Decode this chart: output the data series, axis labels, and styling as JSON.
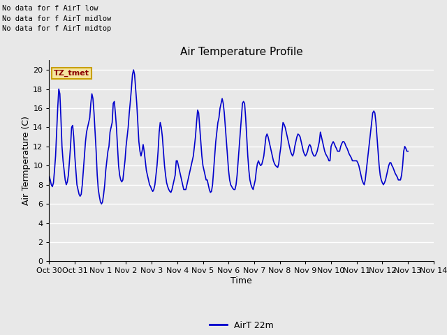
{
  "title": "Air Temperature Profile",
  "xlabel": "Time",
  "ylabel": "Air Termperature (C)",
  "ylim": [
    0,
    21
  ],
  "yticks": [
    0,
    2,
    4,
    6,
    8,
    10,
    12,
    14,
    16,
    18,
    20
  ],
  "xtick_labels": [
    "Oct 30",
    "Oct 31",
    "Nov 1",
    "Nov 2",
    "Nov 3",
    "Nov 4",
    "Nov 5",
    "Nov 6",
    "Nov 7",
    "Nov 8",
    "Nov 9",
    "Nov 10",
    "Nov 11",
    "Nov 12",
    "Nov 13",
    "Nov 14"
  ],
  "line_color": "#0000cc",
  "line_width": 1.2,
  "bg_color": "#e8e8e8",
  "plot_bg_color": "#e8e8e8",
  "grid_color": "#ffffff",
  "legend_label": "AirT 22m",
  "no_data_texts": [
    "No data for f AirT low",
    "No data for f AirT midlow",
    "No data for f AirT midtop"
  ],
  "tz_label": "TZ_tmet",
  "time_days": [
    0.0,
    0.042,
    0.083,
    0.125,
    0.167,
    0.208,
    0.25,
    0.292,
    0.333,
    0.375,
    0.417,
    0.458,
    0.5,
    0.542,
    0.583,
    0.625,
    0.667,
    0.708,
    0.75,
    0.792,
    0.833,
    0.875,
    0.917,
    0.958,
    1.0,
    1.042,
    1.083,
    1.125,
    1.167,
    1.208,
    1.25,
    1.292,
    1.333,
    1.375,
    1.417,
    1.458,
    1.5,
    1.542,
    1.583,
    1.625,
    1.667,
    1.708,
    1.75,
    1.792,
    1.833,
    1.875,
    1.917,
    1.958,
    2.0,
    2.042,
    2.083,
    2.125,
    2.167,
    2.208,
    2.25,
    2.292,
    2.333,
    2.375,
    2.417,
    2.458,
    2.5,
    2.542,
    2.583,
    2.625,
    2.667,
    2.708,
    2.75,
    2.792,
    2.833,
    2.875,
    2.917,
    2.958,
    3.0,
    3.042,
    3.083,
    3.125,
    3.167,
    3.208,
    3.25,
    3.292,
    3.333,
    3.375,
    3.417,
    3.458,
    3.5,
    3.542,
    3.583,
    3.625,
    3.667,
    3.708,
    3.75,
    3.792,
    3.833,
    3.875,
    3.917,
    3.958,
    4.0,
    4.042,
    4.083,
    4.125,
    4.167,
    4.208,
    4.25,
    4.292,
    4.333,
    4.375,
    4.417,
    4.458,
    4.5,
    4.542,
    4.583,
    4.625,
    4.667,
    4.708,
    4.75,
    4.792,
    4.833,
    4.875,
    4.917,
    4.958,
    5.0,
    5.042,
    5.083,
    5.125,
    5.167,
    5.208,
    5.25,
    5.292,
    5.333,
    5.375,
    5.417,
    5.458,
    5.5,
    5.542,
    5.583,
    5.625,
    5.667,
    5.708,
    5.75,
    5.792,
    5.833,
    5.875,
    5.917,
    5.958,
    6.0,
    6.042,
    6.083,
    6.125,
    6.167,
    6.208,
    6.25,
    6.292,
    6.333,
    6.375,
    6.417,
    6.458,
    6.5,
    6.542,
    6.583,
    6.625,
    6.667,
    6.708,
    6.75,
    6.792,
    6.833,
    6.875,
    6.917,
    6.958,
    7.0,
    7.042,
    7.083,
    7.125,
    7.167,
    7.208,
    7.25,
    7.292,
    7.333,
    7.375,
    7.417,
    7.458,
    7.5,
    7.542,
    7.583,
    7.625,
    7.667,
    7.708,
    7.75,
    7.792,
    7.833,
    7.875,
    7.917,
    7.958,
    8.0,
    8.042,
    8.083,
    8.125,
    8.167,
    8.208,
    8.25,
    8.292,
    8.333,
    8.375,
    8.417,
    8.458,
    8.5,
    8.542,
    8.583,
    8.625,
    8.667,
    8.708,
    8.75,
    8.792,
    8.833,
    8.875,
    8.917,
    8.958,
    9.0,
    9.042,
    9.083,
    9.125,
    9.167,
    9.208,
    9.25,
    9.292,
    9.333,
    9.375,
    9.417,
    9.458,
    9.5,
    9.542,
    9.583,
    9.625,
    9.667,
    9.708,
    9.75,
    9.792,
    9.833,
    9.875,
    9.917,
    9.958,
    10.0,
    10.042,
    10.083,
    10.125,
    10.167,
    10.208,
    10.25,
    10.292,
    10.333,
    10.375,
    10.417,
    10.458,
    10.5,
    10.542,
    10.583,
    10.625,
    10.667,
    10.708,
    10.75,
    10.792,
    10.833,
    10.875,
    10.917,
    10.958,
    11.0,
    11.042,
    11.083,
    11.125,
    11.167,
    11.208,
    11.25,
    11.292,
    11.333,
    11.375,
    11.417,
    11.458,
    11.5,
    11.542,
    11.583,
    11.625,
    11.667,
    11.708,
    11.75,
    11.792,
    11.833,
    11.875,
    11.917,
    11.958,
    12.0,
    12.042,
    12.083,
    12.125,
    12.167,
    12.208,
    12.25,
    12.292,
    12.333,
    12.375,
    12.417,
    12.458,
    12.5,
    12.542,
    12.583,
    12.625,
    12.667,
    12.708,
    12.75,
    12.792,
    12.833,
    12.875,
    12.917,
    12.958,
    13.0,
    13.042,
    13.083,
    13.125,
    13.167,
    13.208,
    13.25,
    13.292,
    13.333,
    13.375,
    13.417,
    13.458,
    13.5,
    13.542,
    13.583,
    13.625,
    13.667,
    13.708,
    13.75,
    13.792,
    13.833,
    13.875,
    13.917,
    13.958,
    14.0
  ],
  "temp_values": [
    8.9,
    8.5,
    8.0,
    7.8,
    8.2,
    9.5,
    11.0,
    13.5,
    16.0,
    18.0,
    17.5,
    15.0,
    12.0,
    10.5,
    9.5,
    8.5,
    8.0,
    8.3,
    9.0,
    10.5,
    12.0,
    14.0,
    14.2,
    13.0,
    11.0,
    9.5,
    8.0,
    7.5,
    7.0,
    6.8,
    7.0,
    8.0,
    9.5,
    11.0,
    12.5,
    13.5,
    14.0,
    14.5,
    15.0,
    16.5,
    17.5,
    17.0,
    15.5,
    13.5,
    11.5,
    9.0,
    7.5,
    6.8,
    6.2,
    6.0,
    6.2,
    7.0,
    8.0,
    9.5,
    10.5,
    11.5,
    12.0,
    13.5,
    14.0,
    14.5,
    16.5,
    16.7,
    15.5,
    14.0,
    12.0,
    10.0,
    9.0,
    8.5,
    8.3,
    8.5,
    9.5,
    10.5,
    12.0,
    13.0,
    14.0,
    15.5,
    16.7,
    18.0,
    19.5,
    20.0,
    19.5,
    18.0,
    16.5,
    14.5,
    12.5,
    11.5,
    11.0,
    11.5,
    12.2,
    11.5,
    10.5,
    9.5,
    9.0,
    8.5,
    8.0,
    7.8,
    7.5,
    7.3,
    7.5,
    8.0,
    9.0,
    10.0,
    11.5,
    13.5,
    14.5,
    14.0,
    13.0,
    11.5,
    10.0,
    9.0,
    8.2,
    7.8,
    7.5,
    7.3,
    7.2,
    7.5,
    8.0,
    8.5,
    9.0,
    10.5,
    10.5,
    10.0,
    9.5,
    9.0,
    8.5,
    8.0,
    7.5,
    7.5,
    7.5,
    8.0,
    8.5,
    9.0,
    9.5,
    10.0,
    10.5,
    11.0,
    12.0,
    13.0,
    14.5,
    15.8,
    15.5,
    14.0,
    12.5,
    11.0,
    10.0,
    9.5,
    9.0,
    8.5,
    8.5,
    8.0,
    7.5,
    7.2,
    7.3,
    8.0,
    9.5,
    11.0,
    12.5,
    13.5,
    14.5,
    15.0,
    16.0,
    16.5,
    17.0,
    16.5,
    15.5,
    14.0,
    12.5,
    11.0,
    9.5,
    8.5,
    8.0,
    7.8,
    7.6,
    7.5,
    7.5,
    8.0,
    9.0,
    10.5,
    12.0,
    13.5,
    15.0,
    16.5,
    16.7,
    16.5,
    15.0,
    13.0,
    11.0,
    9.5,
    8.5,
    8.0,
    7.7,
    7.5,
    8.0,
    8.5,
    9.5,
    10.2,
    10.5,
    10.2,
    10.0,
    10.1,
    10.5,
    11.0,
    12.0,
    13.0,
    13.3,
    13.0,
    12.5,
    12.0,
    11.5,
    11.0,
    10.5,
    10.2,
    10.0,
    9.9,
    9.8,
    10.2,
    11.2,
    12.0,
    13.5,
    14.5,
    14.3,
    14.0,
    13.5,
    13.0,
    12.5,
    12.0,
    11.5,
    11.2,
    11.0,
    11.3,
    12.0,
    12.5,
    13.0,
    13.3,
    13.2,
    13.0,
    12.5,
    12.0,
    11.5,
    11.2,
    11.0,
    11.2,
    11.5,
    12.0,
    12.2,
    12.0,
    11.5,
    11.2,
    11.0,
    11.0,
    11.2,
    11.5,
    12.0,
    12.5,
    13.5,
    13.0,
    12.5,
    12.0,
    11.5,
    11.2,
    11.0,
    10.8,
    10.5,
    10.5,
    12.0,
    12.3,
    12.5,
    12.3,
    12.0,
    11.8,
    11.5,
    11.5,
    11.5,
    12.0,
    12.3,
    12.5,
    12.5,
    12.3,
    12.0,
    11.8,
    11.5,
    11.2,
    11.0,
    10.8,
    10.5,
    10.5,
    10.5,
    10.5,
    10.5,
    10.3,
    10.0,
    9.5,
    9.0,
    8.5,
    8.2,
    8.0,
    8.5,
    9.5,
    10.5,
    11.5,
    12.5,
    13.5,
    14.5,
    15.5,
    15.7,
    15.5,
    14.5,
    13.0,
    11.5,
    10.0,
    9.0,
    8.5,
    8.2,
    8.0,
    8.2,
    8.5,
    9.0,
    9.5,
    10.0,
    10.3,
    10.3,
    10.0,
    9.8,
    9.5,
    9.2,
    9.0,
    8.8,
    8.5,
    8.5,
    8.5,
    9.0,
    10.0,
    11.5,
    12.0,
    11.8,
    11.5,
    11.5
  ]
}
